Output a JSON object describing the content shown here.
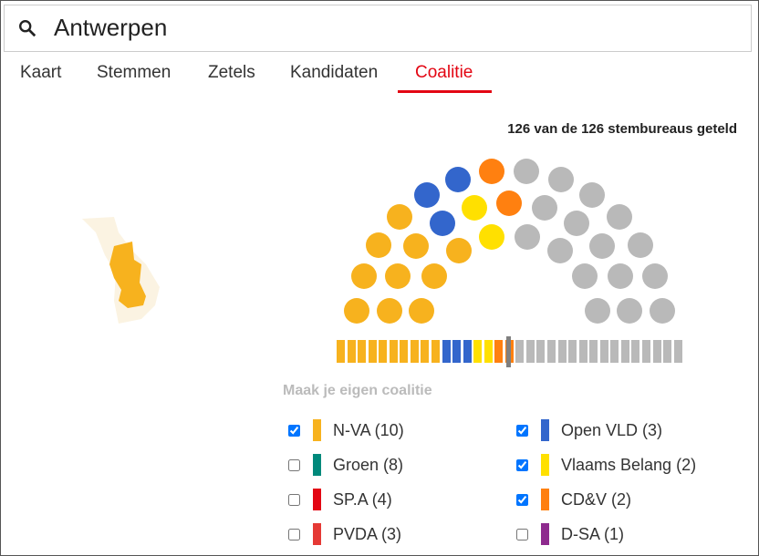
{
  "search": {
    "value": "Antwerpen",
    "icon": "search-icon"
  },
  "tabs": [
    {
      "label": "Kaart"
    },
    {
      "label": "Stemmen"
    },
    {
      "label": "Zetels"
    },
    {
      "label": "Kandidaten"
    },
    {
      "label": "Coalitie",
      "active": true
    }
  ],
  "count_text": "126 van de 126 stembureaus geteld",
  "coalition_title": "Maak je eigen coalitie",
  "neutral_color": "#b9b9b9",
  "total_seats": 33,
  "parties": [
    {
      "label": "N-VA (10)",
      "seats": 10,
      "color": "#f7b21e",
      "checked": true
    },
    {
      "label": "Groen (8)",
      "seats": 8,
      "color": "#00897b",
      "checked": false
    },
    {
      "label": "SP.A (4)",
      "seats": 4,
      "color": "#e30613",
      "checked": false
    },
    {
      "label": "PVDA (3)",
      "seats": 3,
      "color": "#e53935",
      "checked": false
    },
    {
      "label": "Open VLD (3)",
      "seats": 3,
      "color": "#3366cc",
      "checked": true
    },
    {
      "label": "Vlaams Belang (2)",
      "seats": 2,
      "color": "#ffe000",
      "checked": true
    },
    {
      "label": "CD&V (2)",
      "seats": 2,
      "color": "#ff8010",
      "checked": true
    },
    {
      "label": "D-SA (1)",
      "seats": 1,
      "color": "#8e2a8e",
      "checked": false
    }
  ],
  "hemicycle_order": [
    "N-VA (10)",
    "Open VLD (3)",
    "Vlaams Belang (2)",
    "CD&V (2)"
  ]
}
